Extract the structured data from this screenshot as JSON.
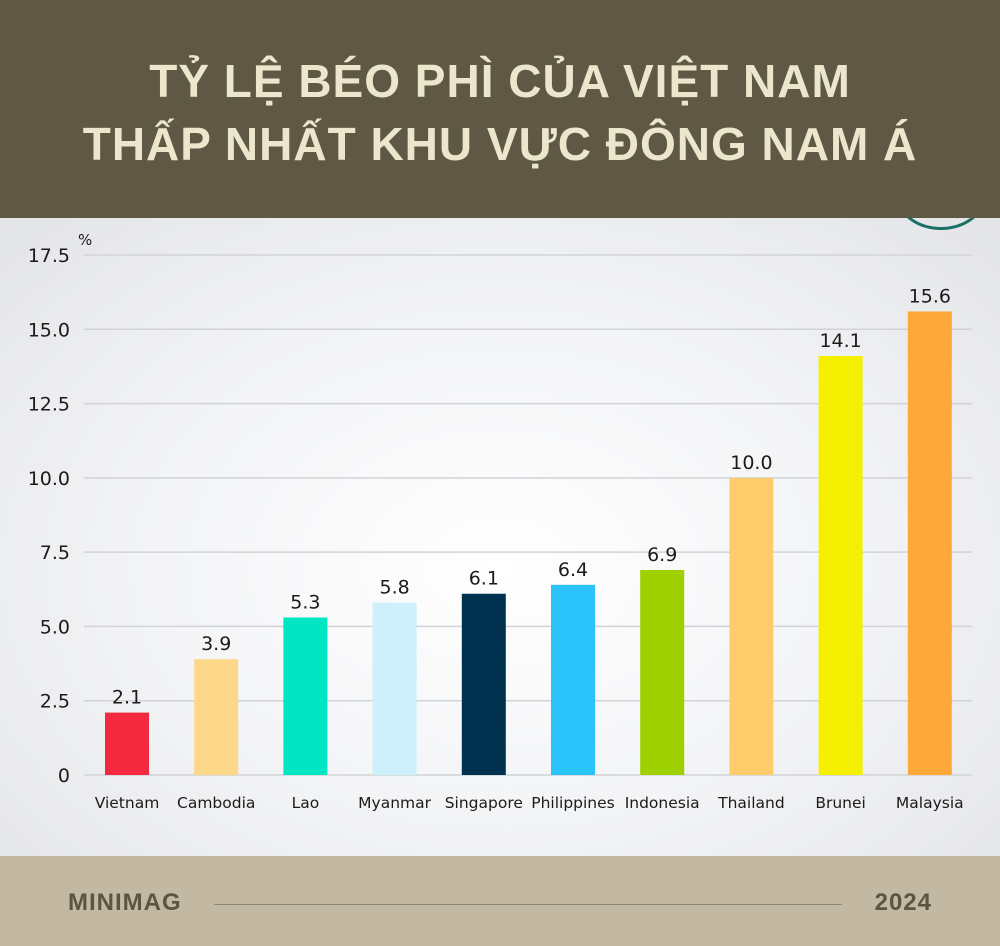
{
  "header": {
    "title_line1": "TỶ LỆ BÉO PHÌ CỦA VIỆT NAM",
    "title_line2": "THẤP NHẤT KHU VỰC ĐÔNG NAM Á"
  },
  "footer": {
    "brand": "MINIMAG",
    "year": "2024"
  },
  "chart_data": {
    "type": "bar",
    "unit_label": "%",
    "categories": [
      "Vietnam",
      "Cambodia",
      "Lao",
      "Myanmar",
      "Singapore",
      "Philippines",
      "Indonesia",
      "Thailand",
      "Brunei",
      "Malaysia"
    ],
    "values": [
      2.1,
      3.9,
      5.3,
      5.8,
      6.1,
      6.4,
      6.9,
      10.0,
      14.1,
      15.6
    ],
    "value_labels": [
      "2.1",
      "3.9",
      "5.3",
      "5.8",
      "6.1",
      "6.4",
      "6.9",
      "10.0",
      "14.1",
      "15.6"
    ],
    "colors": [
      "#f4293f",
      "#fdd88a",
      "#00e5c2",
      "#cdf0fb",
      "#00324f",
      "#2bc4fa",
      "#9fd000",
      "#ffcc6b",
      "#f5f000",
      "#ffa83a"
    ],
    "yticks": [
      "0",
      "2.5",
      "5.0",
      "7.5",
      "10.0",
      "12.5",
      "15.0",
      "17.5"
    ],
    "ytick_values": [
      0,
      2.5,
      5,
      7.5,
      10,
      12.5,
      15,
      17.5
    ],
    "ylim": [
      0,
      17.5
    ],
    "grid": true,
    "legend": "none"
  }
}
